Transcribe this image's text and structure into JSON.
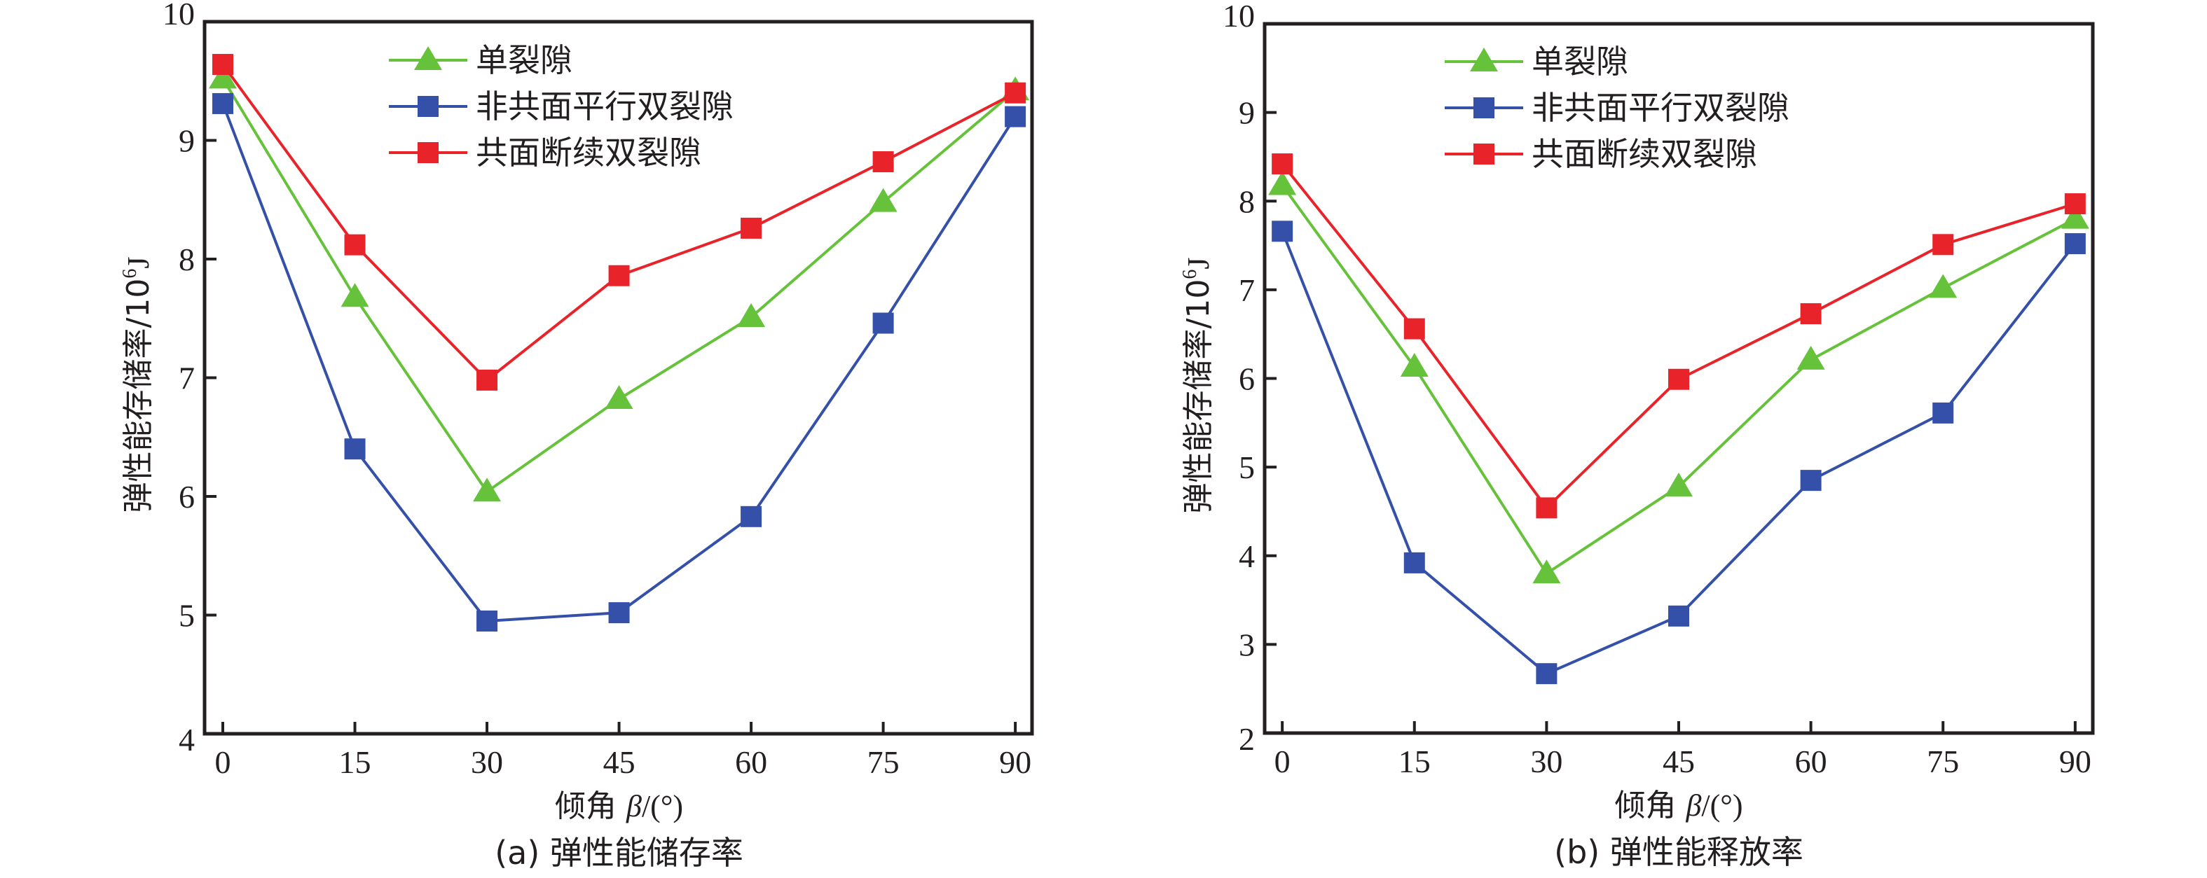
{
  "chart_data": [
    {
      "type": "line",
      "panel": "a",
      "caption": "(a) 弹性能储存率",
      "xlabel": "倾角 β/(°)",
      "xlabel_parts": {
        "prefix": "倾角 ",
        "symbol": "β",
        "suffix": "/(°)"
      },
      "ylabel": "弹性能存储率/10⁶J",
      "ylabel_parts": {
        "main": "弹性能存储率/10",
        "sup": "6",
        "unit": "J"
      },
      "x": [
        0,
        15,
        30,
        45,
        60,
        75,
        90
      ],
      "xlim": [
        -2.07,
        91.9
      ],
      "ylim": [
        4,
        10
      ],
      "xticks": [
        "0",
        "15",
        "30",
        "45",
        "60",
        "75",
        "90"
      ],
      "yticks": [
        "4",
        "5",
        "6",
        "7",
        "8",
        "9",
        "10"
      ],
      "grid": false,
      "legend_position": "top-center",
      "series": [
        {
          "name": "单裂隙",
          "marker": "triangle",
          "color": "#66c23a",
          "values": [
            9.52,
            7.68,
            6.04,
            6.82,
            7.51,
            8.48,
            9.42
          ]
        },
        {
          "name": "非共面平行双裂隙",
          "marker": "square",
          "color": "#3450a8",
          "values": [
            9.31,
            6.4,
            4.95,
            5.02,
            5.83,
            7.46,
            9.2
          ]
        },
        {
          "name": "共面断续双裂隙",
          "marker": "square",
          "color": "#e8242a",
          "values": [
            9.64,
            8.12,
            6.98,
            7.86,
            8.26,
            8.82,
            9.4
          ]
        }
      ]
    },
    {
      "type": "line",
      "panel": "b",
      "caption": "(b) 弹性能释放率",
      "xlabel": "倾角 β/(°)",
      "xlabel_parts": {
        "prefix": "倾角 ",
        "symbol": "β",
        "suffix": "/(°)"
      },
      "ylabel": "弹性能存储率/10⁶J",
      "ylabel_parts": {
        "main": "弹性能存储率/10",
        "sup": "6",
        "unit": "J"
      },
      "x": [
        0,
        15,
        30,
        45,
        60,
        75,
        90
      ],
      "xlim": [
        -2.0,
        92.0
      ],
      "ylim": [
        2,
        10
      ],
      "xticks": [
        "0",
        "15",
        "30",
        "45",
        "60",
        "75",
        "90"
      ],
      "yticks": [
        "2",
        "3",
        "4",
        "5",
        "6",
        "7",
        "8",
        "9",
        "10"
      ],
      "grid": false,
      "legend_position": "top-center",
      "series": [
        {
          "name": "单裂隙",
          "marker": "triangle",
          "color": "#66c23a",
          "values": [
            8.18,
            6.13,
            3.8,
            4.78,
            6.21,
            7.02,
            7.8
          ]
        },
        {
          "name": "非共面平行双裂隙",
          "marker": "square",
          "color": "#3450a8",
          "values": [
            7.66,
            3.92,
            2.67,
            3.32,
            4.85,
            5.61,
            7.52
          ]
        },
        {
          "name": "共面断续双裂隙",
          "marker": "square",
          "color": "#e8242a",
          "values": [
            8.42,
            6.56,
            4.54,
            5.99,
            6.73,
            7.51,
            7.97
          ]
        }
      ]
    }
  ],
  "colors": {
    "axis": "#231f20",
    "background": "#ffffff"
  }
}
